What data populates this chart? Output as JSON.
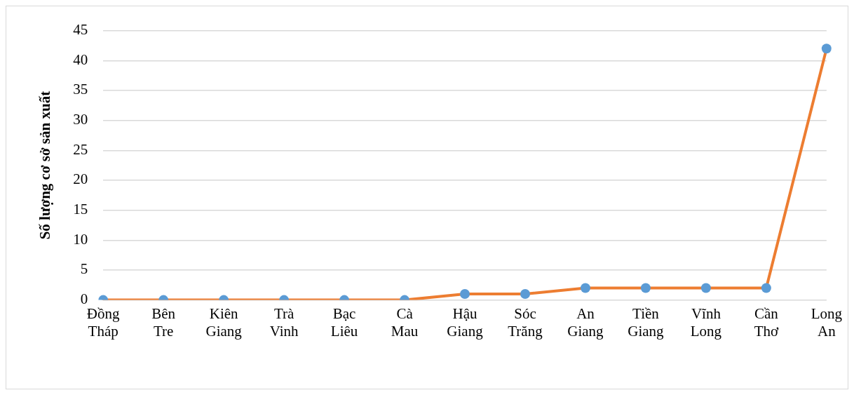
{
  "chart_data": {
    "type": "line",
    "ylabel": "Số lượng cơ sở sản xuất",
    "categories": [
      "Đồng Tháp",
      "Bên Tre",
      "Kiên Giang",
      "Trà Vinh",
      "Bạc Liêu",
      "Cà Mau",
      "Hậu Giang",
      "Sóc Trăng",
      "An Giang",
      "Tiền Giang",
      "Vĩnh Long",
      "Cần Thơ",
      "Long An"
    ],
    "series": [
      {
        "color": "#ed7d31",
        "colors": [
          "#5b9bd5",
          "#5b9bd5",
          "#5b9bd5",
          "#5b9bd5",
          "#5b9bd5",
          "#5b9bd5",
          "#5b9bd5",
          "#5b9bd5",
          "#5b9bd5",
          "#5b9bd5",
          "#5b9bd5",
          "#5b9bd5",
          "#5b9bd5"
        ],
        "values": [
          0,
          0,
          0,
          0,
          0,
          0,
          1,
          1,
          2,
          2,
          2,
          2,
          42
        ]
      }
    ],
    "ylim": [
      0,
      45
    ],
    "yticks": [
      0,
      5,
      10,
      15,
      20,
      25,
      30,
      35,
      40,
      45
    ],
    "grid": "y",
    "marker": "circle",
    "line_style": "solid"
  }
}
